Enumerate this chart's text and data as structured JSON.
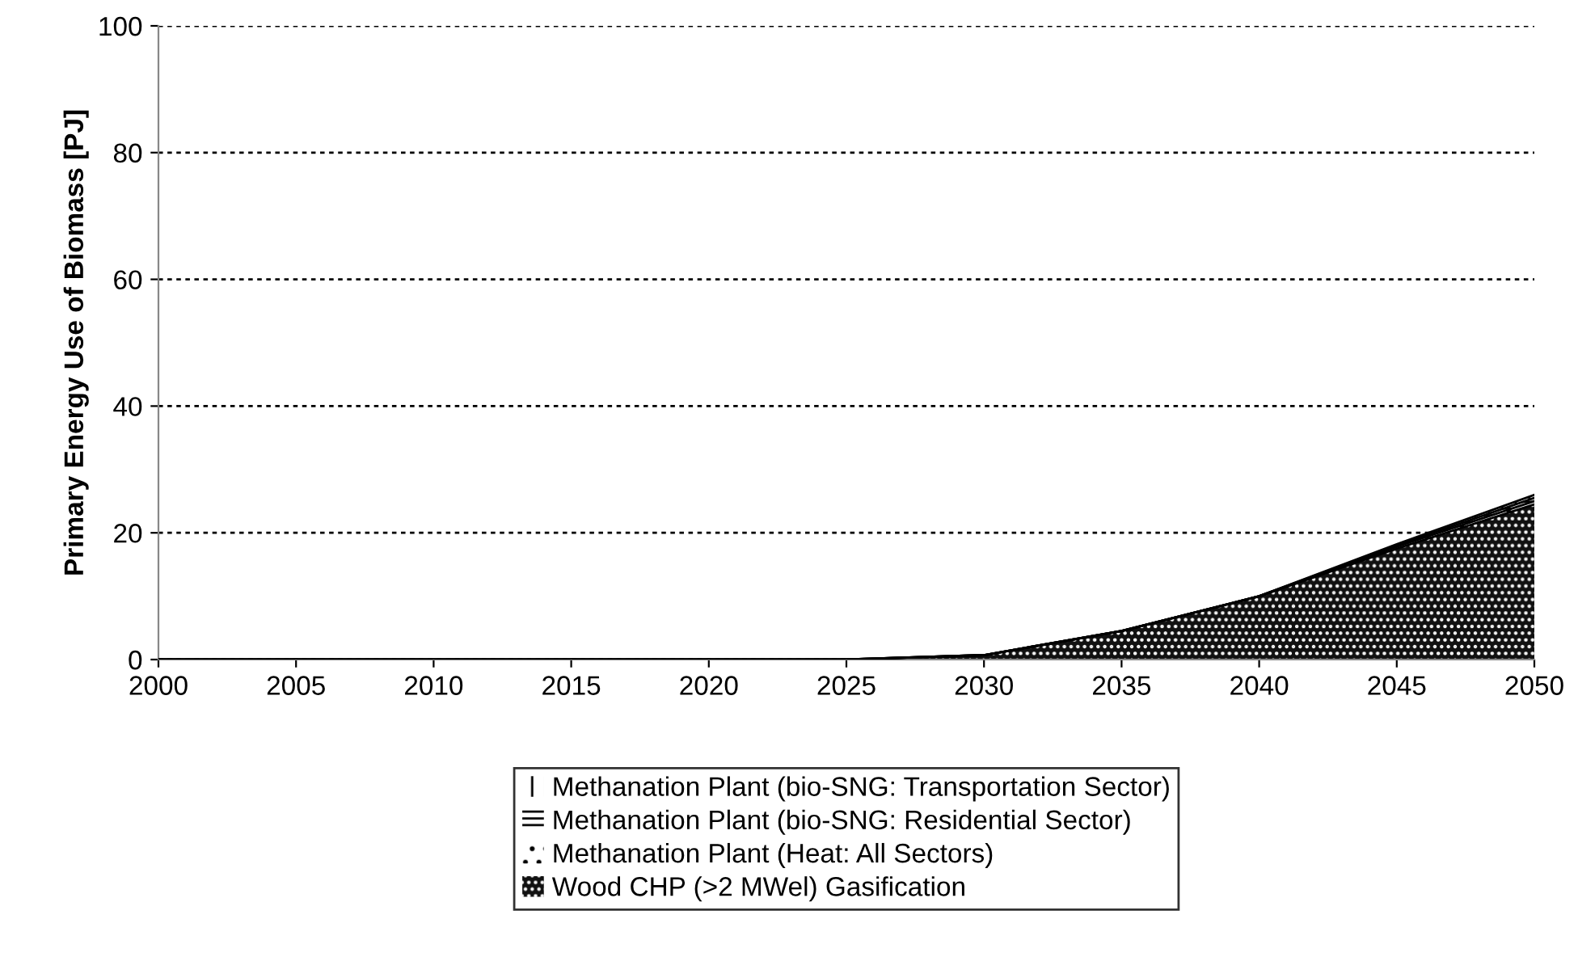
{
  "chart_data": {
    "type": "area",
    "stacked": true,
    "ylabel": "Primary Energy Use of Biomass [PJ]",
    "x": [
      2000,
      2005,
      2010,
      2015,
      2020,
      2025,
      2030,
      2035,
      2040,
      2045,
      2050
    ],
    "series": [
      {
        "name": "Wood CHP (>2 MWel) Gasification",
        "color": "#111111",
        "values": [
          0,
          0,
          0,
          0,
          0,
          0,
          0.7,
          4.5,
          10,
          17.5,
          24.5
        ]
      },
      {
        "name": "Methanation Plant (Heat: All Sectors)",
        "color": "#ffffff",
        "values": [
          0,
          0,
          0,
          0,
          0,
          0,
          0,
          0,
          0,
          0.3,
          0.5
        ]
      },
      {
        "name": "Methanation Plant (bio-SNG: Residential Sector)",
        "color": "#ffffff",
        "values": [
          0,
          0,
          0,
          0,
          0,
          0,
          0,
          0,
          0,
          0.2,
          0.5
        ]
      },
      {
        "name": "Methanation Plant (bio-SNG: Transportation Sector)",
        "color": "#ffffff",
        "values": [
          0,
          0,
          0,
          0,
          0,
          0,
          0,
          0,
          0,
          0.2,
          0.5
        ]
      }
    ],
    "xlim": [
      2000,
      2050
    ],
    "xticks": [
      2000,
      2005,
      2010,
      2015,
      2020,
      2025,
      2030,
      2035,
      2040,
      2045,
      2050
    ],
    "ylim": [
      0,
      100
    ],
    "yticks": [
      0,
      20,
      40,
      60,
      80,
      100
    ],
    "grid": "y",
    "line_style": "dotted",
    "legend": "bottom"
  }
}
